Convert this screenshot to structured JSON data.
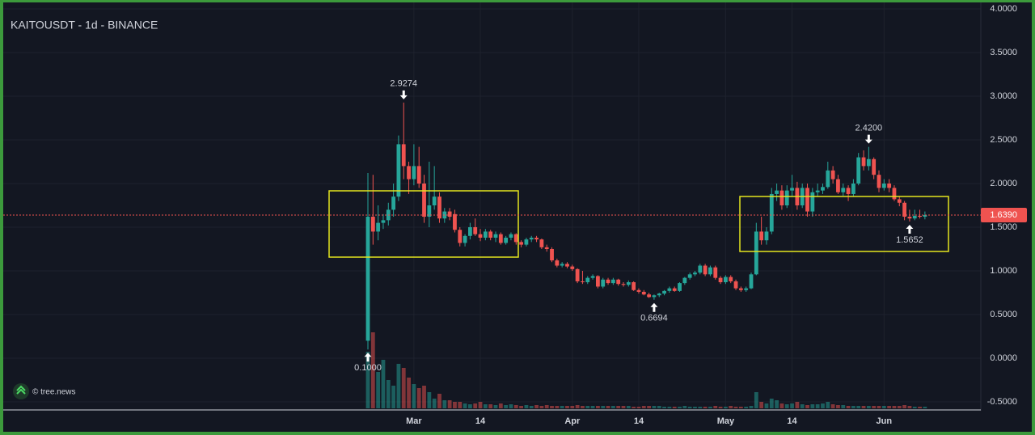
{
  "chart_data": {
    "type": "candlestick",
    "title": "KAITOUSDT - 1d - BINANCE",
    "watermark": "© tree.news",
    "x": [
      "Feb 20",
      "Feb 21",
      "Feb 22",
      "Feb 23",
      "Feb 24",
      "Feb 25",
      "Feb 26",
      "Feb 27",
      "Feb 28",
      "Mar 1",
      "Mar 2",
      "Mar 3",
      "Mar 4",
      "Mar 5",
      "Mar 6",
      "Mar 7",
      "Mar 8",
      "Mar 9",
      "Mar 10",
      "Mar 11",
      "Mar 12",
      "Mar 13",
      "Mar 14",
      "Mar 15",
      "Mar 16",
      "Mar 17",
      "Mar 18",
      "Mar 19",
      "Mar 20",
      "Mar 21",
      "Mar 22",
      "Mar 23",
      "Mar 24",
      "Mar 25",
      "Mar 26",
      "Mar 27",
      "Mar 28",
      "Mar 29",
      "Mar 30",
      "Mar 31",
      "Apr 1",
      "Apr 2",
      "Apr 3",
      "Apr 4",
      "Apr 5",
      "Apr 6",
      "Apr 7",
      "Apr 8",
      "Apr 9",
      "Apr 10",
      "Apr 11",
      "Apr 12",
      "Apr 13",
      "Apr 14",
      "Apr 15",
      "Apr 16",
      "Apr 17",
      "Apr 18",
      "Apr 19",
      "Apr 20",
      "Apr 21",
      "Apr 22",
      "Apr 23",
      "Apr 24",
      "Apr 25",
      "Apr 26",
      "Apr 27",
      "Apr 28",
      "Apr 29",
      "Apr 30",
      "May 1",
      "May 2",
      "May 3",
      "May 4",
      "May 5",
      "May 6",
      "May 7",
      "May 8",
      "May 9",
      "May 10",
      "May 11",
      "May 12",
      "May 13",
      "May 14",
      "May 15",
      "May 16",
      "May 17",
      "May 18",
      "May 19",
      "May 20",
      "May 21",
      "May 22",
      "May 23",
      "May 24",
      "May 25",
      "May 26",
      "May 27",
      "May 28",
      "May 29",
      "May 30",
      "May 31",
      "Jun 1",
      "Jun 2",
      "Jun 3",
      "Jun 4",
      "Jun 5",
      "Jun 6",
      "Jun 7",
      "Jun 8",
      "Jun 9"
    ],
    "open": [
      0.2,
      1.62,
      1.45,
      1.55,
      1.58,
      1.7,
      1.85,
      2.45,
      2.2,
      2.05,
      2.2,
      2.0,
      1.62,
      1.75,
      1.85,
      1.6,
      1.68,
      1.65,
      1.47,
      1.32,
      1.4,
      1.5,
      1.42,
      1.38,
      1.45,
      1.38,
      1.42,
      1.32,
      1.38,
      1.42,
      1.33,
      1.3,
      1.36,
      1.38,
      1.36,
      1.27,
      1.25,
      1.12,
      1.06,
      1.08,
      1.05,
      1.02,
      0.88,
      0.87,
      0.92,
      0.94,
      0.82,
      0.9,
      0.86,
      0.9,
      0.85,
      0.84,
      0.87,
      0.78,
      0.76,
      0.73,
      0.7,
      0.72,
      0.74,
      0.77,
      0.8,
      0.77,
      0.86,
      0.92,
      0.96,
      0.98,
      1.06,
      0.96,
      1.04,
      0.92,
      0.87,
      0.93,
      0.88,
      0.8,
      0.78,
      0.8,
      0.96,
      1.45,
      1.35,
      1.45,
      1.88,
      1.92,
      1.75,
      1.92,
      1.95,
      1.75,
      1.95,
      1.68,
      1.9,
      1.92,
      1.96,
      2.15,
      2.05,
      1.9,
      1.95,
      1.88,
      2.0,
      2.3,
      2.2,
      2.28,
      2.1,
      1.95,
      2.0,
      1.95,
      1.82,
      1.78,
      1.62,
      1.6,
      1.63,
      1.62
    ],
    "high": [
      2.12,
      2.1,
      1.75,
      1.65,
      1.78,
      2.0,
      2.55,
      2.9274,
      2.25,
      2.45,
      2.42,
      2.1,
      2.25,
      2.2,
      1.9,
      1.72,
      1.72,
      1.7,
      1.5,
      1.42,
      1.55,
      1.6,
      1.48,
      1.48,
      1.47,
      1.45,
      1.44,
      1.4,
      1.44,
      1.43,
      1.35,
      1.38,
      1.4,
      1.4,
      1.37,
      1.3,
      1.27,
      1.14,
      1.1,
      1.1,
      1.07,
      1.03,
      1.0,
      0.94,
      0.96,
      0.95,
      0.92,
      0.92,
      0.92,
      0.91,
      0.87,
      0.89,
      0.88,
      0.8,
      0.78,
      0.75,
      0.73,
      0.75,
      0.78,
      0.82,
      0.82,
      0.87,
      0.93,
      0.98,
      1.0,
      1.08,
      1.08,
      1.06,
      1.06,
      0.94,
      0.95,
      0.95,
      0.9,
      0.82,
      0.82,
      0.98,
      1.55,
      1.62,
      1.5,
      1.95,
      2.0,
      1.98,
      1.98,
      2.1,
      2.02,
      2.0,
      2.0,
      1.95,
      2.0,
      2.0,
      2.25,
      2.2,
      2.1,
      2.0,
      1.98,
      2.05,
      2.35,
      2.38,
      2.42,
      2.3,
      2.15,
      2.05,
      2.05,
      1.98,
      1.85,
      1.8,
      1.7,
      1.7,
      1.7,
      1.68
    ],
    "low": [
      0.1,
      1.3,
      1.35,
      1.48,
      1.52,
      1.62,
      1.8,
      2.05,
      1.88,
      1.98,
      1.95,
      1.55,
      1.5,
      1.7,
      1.55,
      1.55,
      1.58,
      1.44,
      1.28,
      1.28,
      1.36,
      1.4,
      1.34,
      1.35,
      1.35,
      1.33,
      1.3,
      1.3,
      1.35,
      1.3,
      1.27,
      1.28,
      1.33,
      1.33,
      1.25,
      1.22,
      1.1,
      1.04,
      1.04,
      1.03,
      1.0,
      0.86,
      0.85,
      0.85,
      0.9,
      0.8,
      0.8,
      0.84,
      0.84,
      0.83,
      0.82,
      0.82,
      0.77,
      0.74,
      0.72,
      0.69,
      0.6694,
      0.7,
      0.72,
      0.75,
      0.76,
      0.76,
      0.84,
      0.9,
      0.94,
      0.96,
      0.94,
      0.94,
      0.9,
      0.85,
      0.85,
      0.86,
      0.78,
      0.76,
      0.76,
      0.79,
      0.95,
      1.3,
      1.3,
      1.42,
      1.8,
      1.7,
      1.72,
      1.85,
      1.7,
      1.72,
      1.62,
      1.62,
      1.85,
      1.88,
      1.94,
      2.0,
      1.88,
      1.86,
      1.8,
      1.85,
      1.98,
      2.15,
      2.15,
      2.05,
      1.9,
      1.92,
      1.9,
      1.8,
      1.74,
      1.58,
      1.5652,
      1.58,
      1.6,
      1.59
    ],
    "close": [
      1.62,
      1.45,
      1.55,
      1.58,
      1.7,
      1.85,
      2.45,
      2.2,
      2.05,
      2.2,
      2.0,
      1.62,
      1.75,
      1.85,
      1.6,
      1.68,
      1.62,
      1.47,
      1.32,
      1.4,
      1.5,
      1.42,
      1.38,
      1.45,
      1.38,
      1.42,
      1.32,
      1.38,
      1.42,
      1.33,
      1.3,
      1.36,
      1.38,
      1.36,
      1.27,
      1.25,
      1.12,
      1.06,
      1.08,
      1.05,
      1.02,
      0.88,
      0.87,
      0.92,
      0.94,
      0.82,
      0.9,
      0.86,
      0.9,
      0.85,
      0.84,
      0.87,
      0.78,
      0.76,
      0.73,
      0.7,
      0.72,
      0.74,
      0.77,
      0.8,
      0.77,
      0.86,
      0.92,
      0.96,
      0.98,
      1.06,
      0.96,
      1.04,
      0.92,
      0.87,
      0.93,
      0.88,
      0.8,
      0.78,
      0.8,
      0.96,
      1.45,
      1.35,
      1.45,
      1.88,
      1.92,
      1.75,
      1.92,
      1.95,
      1.75,
      1.95,
      1.68,
      1.9,
      1.92,
      1.96,
      2.15,
      2.05,
      1.9,
      1.95,
      1.88,
      2.0,
      2.3,
      2.2,
      2.28,
      2.1,
      1.95,
      2.0,
      1.95,
      1.82,
      1.78,
      1.62,
      1.6,
      1.63,
      1.62,
      1.639
    ],
    "volume": [
      70,
      94,
      45,
      60,
      35,
      28,
      55,
      50,
      38,
      30,
      25,
      28,
      20,
      12,
      18,
      10,
      10,
      8,
      8,
      6,
      5,
      6,
      8,
      5,
      5,
      4,
      6,
      4,
      5,
      4,
      3,
      4,
      3,
      4,
      3,
      4,
      3,
      3,
      3,
      3,
      3,
      4,
      3,
      3,
      3,
      3,
      3,
      3,
      3,
      3,
      3,
      3,
      2,
      2,
      3,
      3,
      3,
      3,
      2,
      2,
      2,
      2,
      3,
      2,
      2,
      2,
      2,
      2,
      3,
      2,
      2,
      3,
      2,
      2,
      2,
      3,
      20,
      8,
      6,
      12,
      10,
      6,
      5,
      6,
      8,
      5,
      4,
      5,
      5,
      6,
      8,
      5,
      4,
      4,
      3,
      3,
      3,
      3,
      3,
      3,
      3,
      3,
      3,
      3,
      3,
      4,
      3,
      2,
      2,
      2
    ],
    "up_color": "#26a69a",
    "down_color": "#ef5350",
    "ylim": [
      -0.5,
      4.0
    ],
    "yticks": [
      {
        "value": -0.5,
        "label": "-0.5000"
      },
      {
        "value": 0,
        "label": "0.0000"
      },
      {
        "value": 0.5,
        "label": "0.5000"
      },
      {
        "value": 1,
        "label": "1.0000"
      },
      {
        "value": 1.5,
        "label": "1.5000"
      },
      {
        "value": 2,
        "label": "2.0000"
      },
      {
        "value": 2.5,
        "label": "2.5000"
      },
      {
        "value": 3,
        "label": "3.0000"
      },
      {
        "value": 3.5,
        "label": "3.5000"
      },
      {
        "value": 4,
        "label": "4.0000"
      }
    ],
    "xticks": [
      {
        "value": "Mar 1",
        "label": "Mar"
      },
      {
        "value": "Mar 14",
        "label": "14"
      },
      {
        "value": "Apr 1",
        "label": "Apr"
      },
      {
        "value": "Apr 14",
        "label": "14"
      },
      {
        "value": "May 1",
        "label": "May"
      },
      {
        "value": "May 14",
        "label": "14"
      },
      {
        "value": "Jun 1",
        "label": "Jun"
      }
    ],
    "grid": true,
    "last_price": {
      "value": 1.639,
      "label": "1.6390"
    },
    "annotations": [
      {
        "x": "Feb 20",
        "value": 0.1,
        "label": "0.1000",
        "side": "low"
      },
      {
        "x": "Feb 27",
        "value": 2.9274,
        "label": "2.9274",
        "side": "high"
      },
      {
        "x": "Apr 17",
        "value": 0.6694,
        "label": "0.6694",
        "side": "low"
      },
      {
        "x": "May 29",
        "value": 2.42,
        "label": "2.4200",
        "side": "high"
      },
      {
        "x": "Jun 6",
        "value": 1.5652,
        "label": "1.5652",
        "side": "low"
      }
    ]
  }
}
